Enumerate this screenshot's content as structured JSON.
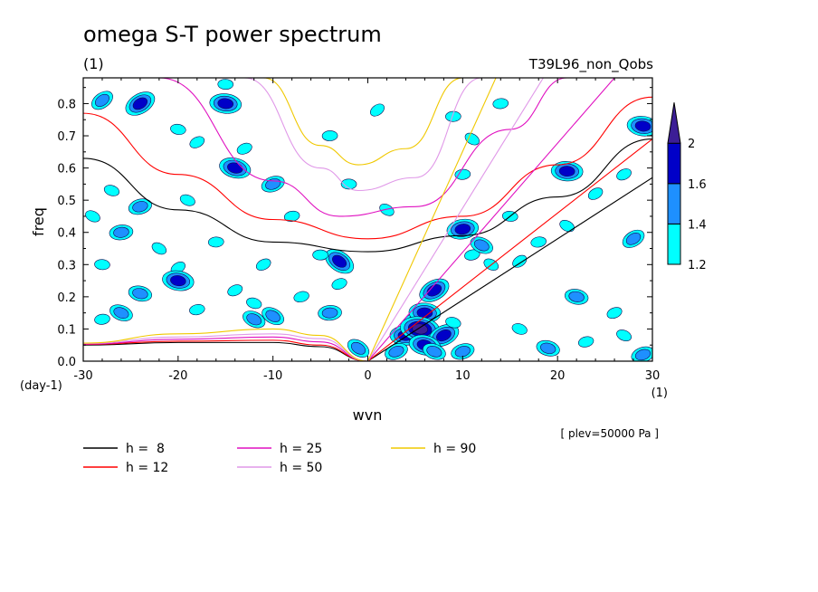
{
  "chart_data": {
    "type": "contour",
    "title": "omega S-T power spectrum",
    "subtitle_units": "(1)",
    "run_label": "T39L96_non_Qobs",
    "xlabel": "wvn",
    "ylabel": "freq",
    "x_units": "(1)",
    "y_units": "(day-1)",
    "level_note": "[ plev=50000 Pa ]",
    "xlim": [
      -30,
      30
    ],
    "ylim": [
      0,
      0.88
    ],
    "x_ticks": [
      -30,
      -20,
      -10,
      0,
      10,
      20,
      30
    ],
    "x_tick_labels": [
      "-30",
      "-20",
      "-10",
      "0",
      "10",
      "20",
      "30"
    ],
    "y_ticks": [
      0.0,
      0.1,
      0.2,
      0.3,
      0.4,
      0.5,
      0.6,
      0.7,
      0.8
    ],
    "y_tick_labels": [
      "0.0",
      "0.1",
      "0.2",
      "0.3",
      "0.4",
      "0.5",
      "0.6",
      "0.7",
      "0.8"
    ],
    "colorbar": {
      "levels": [
        1.2,
        1.4,
        1.6,
        2
      ],
      "labels": [
        "1.2",
        "1.4",
        "1.6",
        "2"
      ],
      "colors": [
        "#00ffff",
        "#1e90ff",
        "#0000c8",
        "#3c1e96"
      ]
    },
    "legend": [
      {
        "label": "h =  8",
        "color": "#000000"
      },
      {
        "label": "h = 12",
        "color": "#ff0000"
      },
      {
        "label": "h = 25",
        "color": "#e010c0"
      },
      {
        "label": "h = 50",
        "color": "#e098e8"
      },
      {
        "label": "h = 90",
        "color": "#f0c800"
      }
    ],
    "dispersion_curves": [
      {
        "h": 8,
        "color": "#000000",
        "kelvin": [
          [
            0,
            0
          ],
          [
            30,
            0.57
          ]
        ],
        "rossby_top": [
          [
            -30,
            0.63
          ],
          [
            -20,
            0.47
          ],
          [
            -10,
            0.37
          ],
          [
            0,
            0.34
          ],
          [
            10,
            0.39
          ],
          [
            20,
            0.51
          ],
          [
            30,
            0.69
          ]
        ],
        "low": [
          [
            -30,
            0.05
          ],
          [
            -20,
            0.058
          ],
          [
            -10,
            0.058
          ],
          [
            -5,
            0.045
          ],
          [
            0,
            0.0
          ]
        ]
      },
      {
        "h": 12,
        "color": "#ff0000",
        "kelvin": [
          [
            0,
            0
          ],
          [
            30,
            0.69
          ]
        ],
        "rossby_top": [
          [
            -30,
            0.77
          ],
          [
            -20,
            0.58
          ],
          [
            -10,
            0.44
          ],
          [
            0,
            0.38
          ],
          [
            10,
            0.45
          ],
          [
            20,
            0.61
          ],
          [
            30,
            0.82
          ]
        ],
        "low": [
          [
            -30,
            0.052
          ],
          [
            -20,
            0.062
          ],
          [
            -10,
            0.065
          ],
          [
            -5,
            0.05
          ],
          [
            0,
            0.0
          ]
        ]
      },
      {
        "h": 25,
        "color": "#e010c0",
        "kelvin": [
          [
            0,
            0
          ],
          [
            26,
            0.88
          ]
        ],
        "rossby_top": [
          [
            -22,
            0.88
          ],
          [
            -10,
            0.56
          ],
          [
            -3,
            0.45
          ],
          [
            5,
            0.48
          ],
          [
            15,
            0.72
          ],
          [
            21,
            0.88
          ]
        ],
        "low": [
          [
            -30,
            0.053
          ],
          [
            -20,
            0.068
          ],
          [
            -10,
            0.075
          ],
          [
            -5,
            0.06
          ],
          [
            0,
            0.0
          ]
        ]
      },
      {
        "h": 50,
        "color": "#e098e8",
        "kelvin": [
          [
            0,
            0
          ],
          [
            18.5,
            0.88
          ]
        ],
        "rossby_top": [
          [
            -13,
            0.88
          ],
          [
            -5,
            0.6
          ],
          [
            -1,
            0.53
          ],
          [
            5,
            0.57
          ],
          [
            12,
            0.88
          ]
        ],
        "low": [
          [
            -30,
            0.055
          ],
          [
            -20,
            0.075
          ],
          [
            -10,
            0.085
          ],
          [
            -5,
            0.07
          ],
          [
            0,
            0.0
          ]
        ]
      },
      {
        "h": 90,
        "color": "#f0c800",
        "kelvin": [
          [
            0,
            0
          ],
          [
            13.5,
            0.88
          ]
        ],
        "rossby_top": [
          [
            -11,
            0.88
          ],
          [
            -5,
            0.67
          ],
          [
            -1,
            0.61
          ],
          [
            4,
            0.66
          ],
          [
            10,
            0.88
          ]
        ],
        "low": [
          [
            -30,
            0.056
          ],
          [
            -20,
            0.085
          ],
          [
            -10,
            0.1
          ],
          [
            -5,
            0.08
          ],
          [
            0,
            0.0
          ]
        ]
      }
    ],
    "power_blobs": [
      {
        "x": -28,
        "y": 0.81,
        "level": 1.4
      },
      {
        "x": -15,
        "y": 0.86,
        "level": 1.2
      },
      {
        "x": -24,
        "y": 0.8,
        "level": 1.6
      },
      {
        "x": -15,
        "y": 0.8,
        "level": 1.6
      },
      {
        "x": -18,
        "y": 0.68,
        "level": 1.2
      },
      {
        "x": -20,
        "y": 0.72,
        "level": 1.2
      },
      {
        "x": -13,
        "y": 0.66,
        "level": 1.2
      },
      {
        "x": -14,
        "y": 0.6,
        "level": 1.6
      },
      {
        "x": -10,
        "y": 0.55,
        "level": 1.4
      },
      {
        "x": -27,
        "y": 0.53,
        "level": 1.2
      },
      {
        "x": -24,
        "y": 0.48,
        "level": 1.4
      },
      {
        "x": -19,
        "y": 0.5,
        "level": 1.2
      },
      {
        "x": -8,
        "y": 0.45,
        "level": 1.2
      },
      {
        "x": -29,
        "y": 0.45,
        "level": 1.2
      },
      {
        "x": -26,
        "y": 0.4,
        "level": 1.4
      },
      {
        "x": -22,
        "y": 0.35,
        "level": 1.2
      },
      {
        "x": -16,
        "y": 0.37,
        "level": 1.2
      },
      {
        "x": -3,
        "y": 0.31,
        "level": 1.6
      },
      {
        "x": -5,
        "y": 0.33,
        "level": 1.2
      },
      {
        "x": -20,
        "y": 0.29,
        "level": 1.2
      },
      {
        "x": -28,
        "y": 0.3,
        "level": 1.2
      },
      {
        "x": -11,
        "y": 0.3,
        "level": 1.2
      },
      {
        "x": -20,
        "y": 0.25,
        "level": 1.6
      },
      {
        "x": -14,
        "y": 0.22,
        "level": 1.2
      },
      {
        "x": -24,
        "y": 0.21,
        "level": 1.4
      },
      {
        "x": -3,
        "y": 0.24,
        "level": 1.2
      },
      {
        "x": -12,
        "y": 0.18,
        "level": 1.2
      },
      {
        "x": -7,
        "y": 0.2,
        "level": 1.2
      },
      {
        "x": -26,
        "y": 0.15,
        "level": 1.4
      },
      {
        "x": -18,
        "y": 0.16,
        "level": 1.2
      },
      {
        "x": -12,
        "y": 0.13,
        "level": 1.4
      },
      {
        "x": -28,
        "y": 0.13,
        "level": 1.2
      },
      {
        "x": -10,
        "y": 0.14,
        "level": 1.4
      },
      {
        "x": -4,
        "y": 0.15,
        "level": 1.4
      },
      {
        "x": -1,
        "y": 0.04,
        "level": 1.4
      },
      {
        "x": 4,
        "y": 0.08,
        "level": 1.6
      },
      {
        "x": 5,
        "y": 0.12,
        "level": 1.6
      },
      {
        "x": 6,
        "y": 0.15,
        "level": 1.6
      },
      {
        "x": 7,
        "y": 0.22,
        "level": 1.6
      },
      {
        "x": 5.5,
        "y": 0.1,
        "level": 2
      },
      {
        "x": 8,
        "y": 0.08,
        "level": 1.6
      },
      {
        "x": 6,
        "y": 0.05,
        "level": 1.6
      },
      {
        "x": 3,
        "y": 0.03,
        "level": 1.4
      },
      {
        "x": 9,
        "y": 0.12,
        "level": 1.2
      },
      {
        "x": 10,
        "y": 0.03,
        "level": 1.4
      },
      {
        "x": 7,
        "y": 0.03,
        "level": 1.4
      },
      {
        "x": 11,
        "y": 0.33,
        "level": 1.2
      },
      {
        "x": 12,
        "y": 0.36,
        "level": 1.4
      },
      {
        "x": 10,
        "y": 0.41,
        "level": 1.6
      },
      {
        "x": 13,
        "y": 0.3,
        "level": 1.2
      },
      {
        "x": 10,
        "y": 0.58,
        "level": 1.2
      },
      {
        "x": 11,
        "y": 0.69,
        "level": 1.2
      },
      {
        "x": 9,
        "y": 0.76,
        "level": 1.2
      },
      {
        "x": 16,
        "y": 0.31,
        "level": 1.2
      },
      {
        "x": 21,
        "y": 0.59,
        "level": 1.6
      },
      {
        "x": 24,
        "y": 0.52,
        "level": 1.2
      },
      {
        "x": 29,
        "y": 0.73,
        "level": 1.6
      },
      {
        "x": 27,
        "y": 0.58,
        "level": 1.2
      },
      {
        "x": 22,
        "y": 0.2,
        "level": 1.4
      },
      {
        "x": 26,
        "y": 0.15,
        "level": 1.2
      },
      {
        "x": 19,
        "y": 0.04,
        "level": 1.4
      },
      {
        "x": 29,
        "y": 0.02,
        "level": 1.4
      },
      {
        "x": 16,
        "y": 0.1,
        "level": 1.2
      },
      {
        "x": 23,
        "y": 0.06,
        "level": 1.2
      },
      {
        "x": 27,
        "y": 0.08,
        "level": 1.2
      },
      {
        "x": 18,
        "y": 0.37,
        "level": 1.2
      },
      {
        "x": 21,
        "y": 0.42,
        "level": 1.2
      },
      {
        "x": 14,
        "y": 0.8,
        "level": 1.2
      },
      {
        "x": 2,
        "y": 0.47,
        "level": 1.2
      },
      {
        "x": -4,
        "y": 0.7,
        "level": 1.2
      },
      {
        "x": 1,
        "y": 0.78,
        "level": 1.2
      },
      {
        "x": -2,
        "y": 0.55,
        "level": 1.2
      },
      {
        "x": 28,
        "y": 0.38,
        "level": 1.4
      },
      {
        "x": 15,
        "y": 0.45,
        "level": 1.2
      }
    ]
  }
}
